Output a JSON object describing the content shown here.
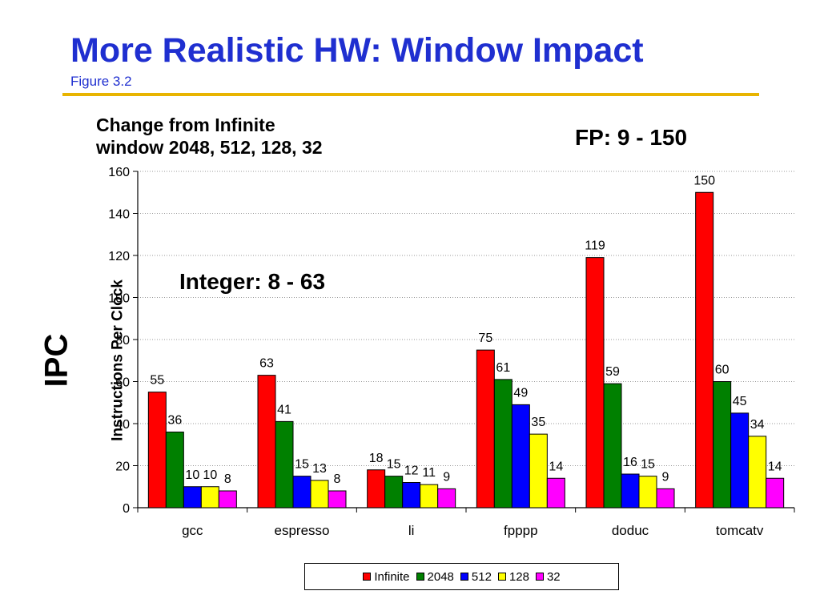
{
  "slide": {
    "title": "More Realistic HW: Window Impact",
    "subtitle": "Figure 3.2"
  },
  "chart_heading": {
    "line1": "Change from Infinite",
    "line2": "window 2048, 512, 128, 32"
  },
  "annotations": {
    "fp": "FP: 9 - 150",
    "integer": "Integer: 8 - 63"
  },
  "y_label": {
    "main": "IPC",
    "sub": "Instructions Per Clock"
  },
  "colors": {
    "Infinite": "#ff0000",
    "2048": "#008000",
    "512": "#0000ff",
    "128": "#ffff00",
    "32": "#ff00ff"
  },
  "chart_data": {
    "type": "bar",
    "categories": [
      "gcc",
      "espresso",
      "li",
      "fpppp",
      "doduc",
      "tomcatv"
    ],
    "series": [
      {
        "name": "Infinite",
        "values": [
          55,
          63,
          18,
          75,
          119,
          150
        ]
      },
      {
        "name": "2048",
        "values": [
          36,
          41,
          15,
          61,
          59,
          60
        ]
      },
      {
        "name": "512",
        "values": [
          10,
          15,
          12,
          49,
          16,
          45
        ]
      },
      {
        "name": "128",
        "values": [
          10,
          13,
          11,
          35,
          15,
          34
        ]
      },
      {
        "name": "32",
        "values": [
          8,
          8,
          9,
          14,
          9,
          14
        ]
      }
    ],
    "yticks": [
      "0",
      "20",
      "40",
      "60",
      "80",
      "100",
      "120",
      "140",
      "160"
    ],
    "ylim": [
      0,
      160
    ],
    "grid": true,
    "legend": "bottom"
  }
}
